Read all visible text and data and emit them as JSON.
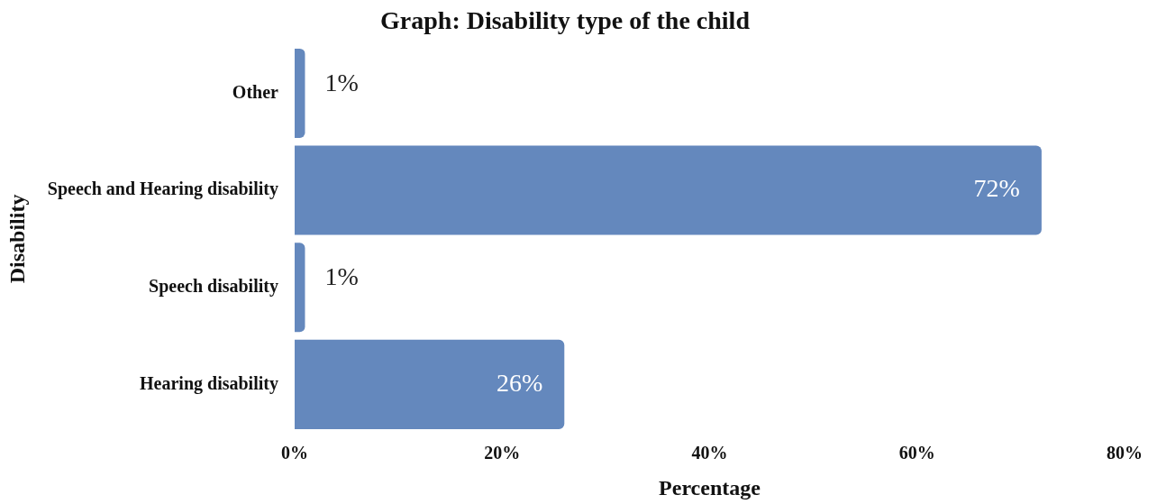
{
  "chart_data": {
    "type": "bar",
    "orientation": "horizontal",
    "title": "Graph: Disability type of the child",
    "xlabel": "Percentage",
    "ylabel": "Disability",
    "categories": [
      "Other",
      "Speech and Hearing disability",
      "Speech disability",
      "Hearing disability"
    ],
    "values": [
      1,
      72,
      1,
      26
    ],
    "color": "#6488bd",
    "value_labels": [
      "1%",
      "72%",
      "1%",
      "26%"
    ],
    "xlim": [
      0,
      80
    ],
    "xticks": [
      {
        "value": 0,
        "label": "0%"
      },
      {
        "value": 20,
        "label": "20%"
      },
      {
        "value": 40,
        "label": "40%"
      },
      {
        "value": 60,
        "label": "60%"
      },
      {
        "value": 80,
        "label": "80%"
      }
    ],
    "grid": false,
    "legend": false
  }
}
